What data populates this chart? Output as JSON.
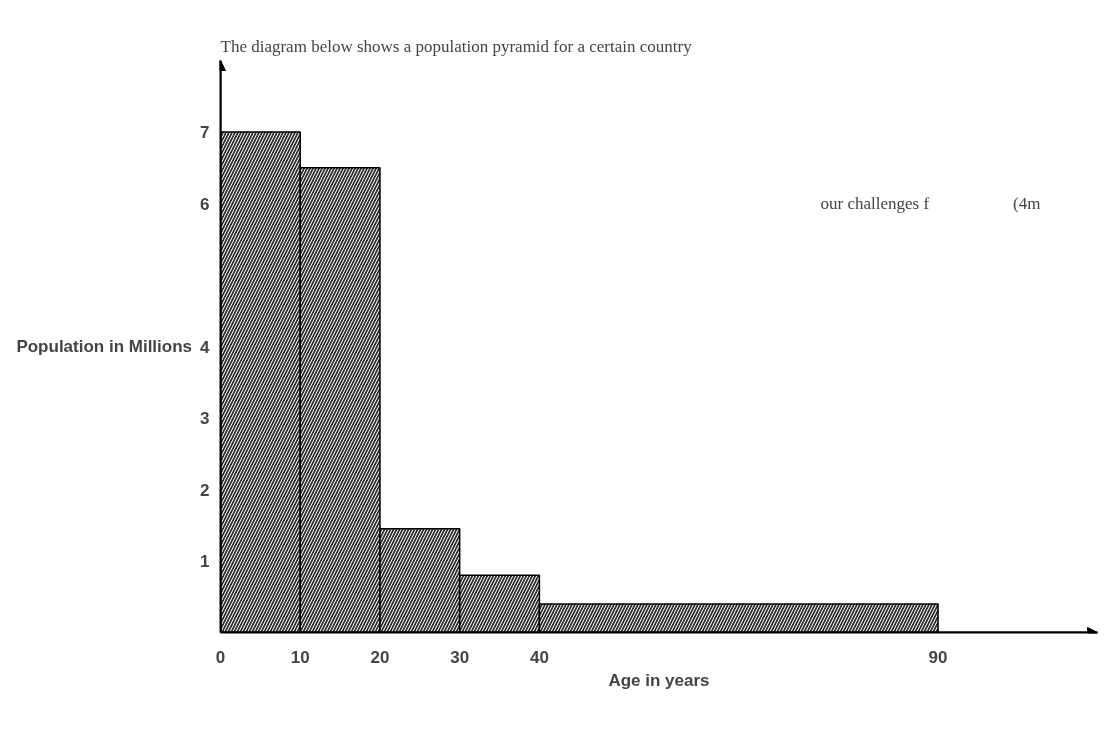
{
  "chart_data": {
    "type": "histogram",
    "title": "The diagram below shows a population pyramid for a certain country",
    "xlabel": "Age in years",
    "ylabel": "Population in Millions",
    "bins": [
      0,
      10,
      20,
      30,
      40,
      90
    ],
    "values": [
      7,
      6.5,
      1.45,
      0.8,
      0.4
    ],
    "color": "#333333",
    "xlim": [
      0,
      110
    ],
    "xticks": [
      0,
      10,
      20,
      30,
      40,
      90
    ],
    "ylim": [
      0,
      8
    ],
    "yticks": [
      1,
      2,
      3,
      4,
      6,
      7
    ],
    "annotations": [
      "our challenges f",
      "(4m"
    ],
    "grid": false
  }
}
